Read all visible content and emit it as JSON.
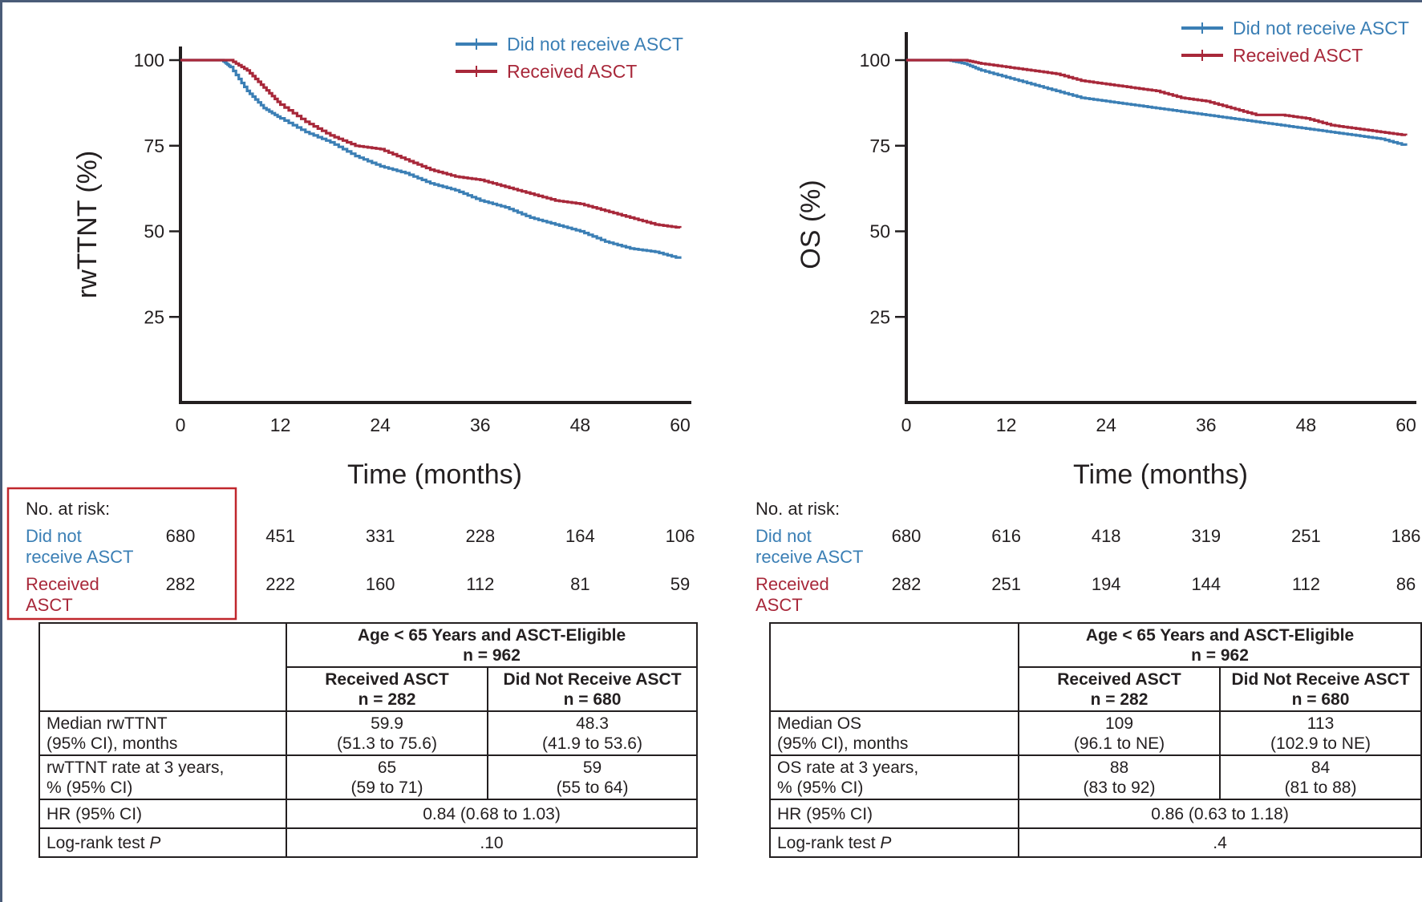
{
  "chart_data": [
    {
      "type": "line",
      "ylabel": "rwTTNT (%)",
      "xlabel": "Time (months)",
      "xlim": [
        0,
        60
      ],
      "ylim": [
        0,
        100
      ],
      "x_ticks": [
        "0",
        "12",
        "24",
        "36",
        "48",
        "60"
      ],
      "y_ticks": [
        "100",
        "75",
        "50",
        "25"
      ],
      "legend": {
        "placement": "top-right",
        "entries": [
          "Did not receive ASCT",
          "Received ASCT"
        ]
      },
      "series": [
        {
          "name": "Did not receive ASCT",
          "color": "#3b7fb5",
          "x": [
            0,
            5,
            6,
            8,
            10,
            12,
            15,
            18,
            21,
            24,
            27,
            30,
            33,
            36,
            39,
            42,
            45,
            48,
            51,
            54,
            57,
            60
          ],
          "y": [
            100,
            100,
            98,
            91,
            86,
            83,
            79,
            76,
            72,
            69,
            67,
            64,
            62,
            59,
            57,
            54,
            52,
            50,
            47,
            45,
            44,
            42
          ]
        },
        {
          "name": "Received ASCT",
          "color": "#a8283a",
          "x": [
            0,
            5,
            6,
            8,
            10,
            12,
            15,
            18,
            21,
            24,
            27,
            30,
            33,
            36,
            39,
            42,
            45,
            48,
            51,
            54,
            57,
            60
          ],
          "y": [
            100,
            100,
            100,
            97,
            92,
            87,
            82,
            78,
            75,
            74,
            71,
            68,
            66,
            65,
            63,
            61,
            59,
            58,
            56,
            54,
            52,
            51
          ]
        }
      ],
      "risk_table": {
        "title": "No. at risk:",
        "rows": [
          {
            "label_line1": "Did not",
            "label_line2": "receive ASCT",
            "color": "#3b7fb5",
            "values": [
              "680",
              "451",
              "331",
              "228",
              "164",
              "106"
            ]
          },
          {
            "label_line1": "Received",
            "label_line2": "ASCT",
            "color": "#a8283a",
            "values": [
              "282",
              "222",
              "160",
              "112",
              "81",
              "59"
            ]
          }
        ]
      }
    },
    {
      "type": "line",
      "ylabel": "OS (%)",
      "xlabel": "Time (months)",
      "xlim": [
        0,
        60
      ],
      "ylim": [
        0,
        100
      ],
      "x_ticks": [
        "0",
        "12",
        "24",
        "36",
        "48",
        "60"
      ],
      "y_ticks": [
        "100",
        "75",
        "50",
        "25"
      ],
      "legend": {
        "placement": "top-right",
        "entries": [
          "Did not receive ASCT",
          "Received ASCT"
        ]
      },
      "series": [
        {
          "name": "Did not receive ASCT",
          "color": "#3b7fb5",
          "x": [
            0,
            5,
            7,
            9,
            12,
            15,
            18,
            21,
            24,
            27,
            30,
            33,
            36,
            39,
            42,
            45,
            48,
            51,
            54,
            57,
            60
          ],
          "y": [
            100,
            100,
            99,
            97,
            95,
            93,
            91,
            89,
            88,
            87,
            86,
            85,
            84,
            83,
            82,
            81,
            80,
            79,
            78,
            77,
            75
          ]
        },
        {
          "name": "Received ASCT",
          "color": "#a8283a",
          "x": [
            0,
            5,
            7,
            9,
            12,
            15,
            18,
            21,
            24,
            27,
            30,
            33,
            36,
            39,
            42,
            45,
            48,
            51,
            54,
            57,
            60
          ],
          "y": [
            100,
            100,
            100,
            99,
            98,
            97,
            96,
            94,
            93,
            92,
            91,
            89,
            88,
            86,
            84,
            84,
            83,
            81,
            80,
            79,
            78
          ]
        }
      ],
      "risk_table": {
        "title": "No. at risk:",
        "rows": [
          {
            "label_line1": "Did not",
            "label_line2": "receive ASCT",
            "color": "#3b7fb5",
            "values": [
              "680",
              "616",
              "418",
              "319",
              "251",
              "186"
            ]
          },
          {
            "label_line1": "Received",
            "label_line2": "ASCT",
            "color": "#a8283a",
            "values": [
              "282",
              "251",
              "194",
              "144",
              "112",
              "86"
            ]
          }
        ]
      }
    }
  ],
  "tables": {
    "left": {
      "group_header": "Age < 65 Years and ASCT-Eligible",
      "group_n": "n = 962",
      "col1_header": "Received ASCT",
      "col1_n": "n = 282",
      "col2_header": "Did Not Receive ASCT",
      "col2_n": "n = 680",
      "rows": [
        {
          "label1": "Median rwTTNT",
          "label2": "(95% CI), months",
          "v1a": "59.9",
          "v1b": "(51.3 to 75.6)",
          "v2a": "48.3",
          "v2b": "(41.9 to 53.6)"
        },
        {
          "label1": "rwTTNT rate at 3 years,",
          "label2": "% (95% CI)",
          "v1a": "65",
          "v1b": "(59 to 71)",
          "v2a": "59",
          "v2b": "(55 to 64)"
        }
      ],
      "hr_label": "HR (95% CI)",
      "hr_value": "0.84 (0.68 to 1.03)",
      "logrank_label": "Log-rank test",
      "logrank_p": "P",
      "logrank_value": ".10"
    },
    "right": {
      "group_header": "Age < 65 Years and ASCT-Eligible",
      "group_n": "n = 962",
      "col1_header": "Received ASCT",
      "col1_n": "n = 282",
      "col2_header": "Did Not Receive ASCT",
      "col2_n": "n = 680",
      "rows": [
        {
          "label1": "Median OS",
          "label2": "(95% CI), months",
          "v1a": "109",
          "v1b": "(96.1 to NE)",
          "v2a": "113",
          "v2b": "(102.9 to NE)"
        },
        {
          "label1": "OS rate at 3 years,",
          "label2": "% (95% CI)",
          "v1a": "88",
          "v1b": "(83 to 92)",
          "v2a": "84",
          "v2b": "(81 to 88)"
        }
      ],
      "hr_label": "HR (95% CI)",
      "hr_value": "0.86 (0.63 to 1.18)",
      "logrank_label": "Log-rank test",
      "logrank_p": "P",
      "logrank_value": ".4"
    }
  }
}
